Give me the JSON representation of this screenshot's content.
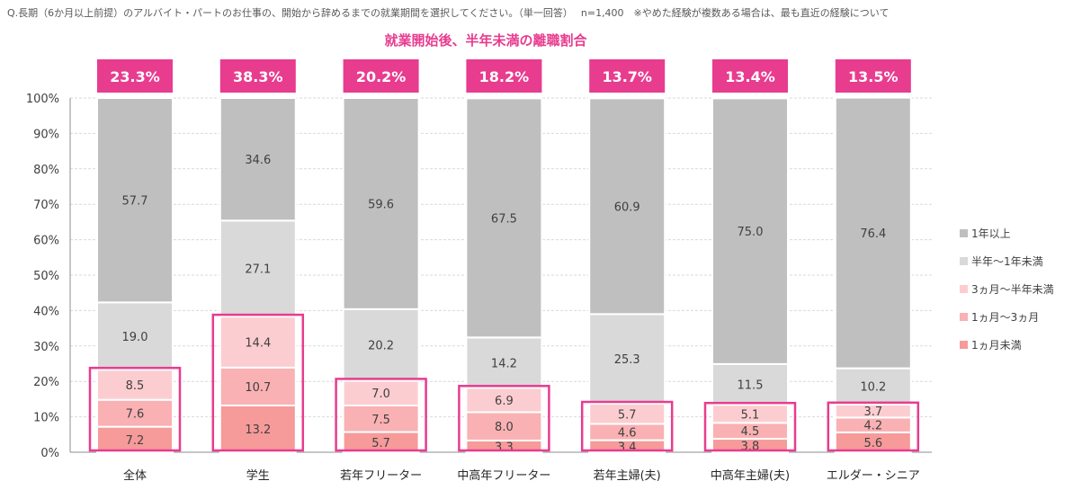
{
  "question": "Q.長期（6か月以上前提）のアルバイト・パートのお仕事の、開始から辞めるまでの就業期間を選択してください。（単一回答）　 n=1,400　※やめた経験が複数ある場合は、最も直近の経験について",
  "chart_data": {
    "type": "bar",
    "stacked": true,
    "title": "就業開始後、半年未満の離職割合",
    "categories": [
      "全体",
      "学生",
      "若年フリーター",
      "中高年フリーター",
      "若年主婦(夫)",
      "中高年主婦(夫)",
      "エルダー・シニア"
    ],
    "ylim": [
      0,
      100
    ],
    "ytick_labels": [
      "0%",
      "10%",
      "20%",
      "30%",
      "40%",
      "50%",
      "60%",
      "70%",
      "80%",
      "90%",
      "100%"
    ],
    "grid": true,
    "legend_position": "right",
    "series": [
      {
        "name": "1ヵ月未満",
        "color": "#f79a9a",
        "values": [
          7.2,
          13.2,
          5.7,
          3.3,
          3.4,
          3.8,
          5.6
        ]
      },
      {
        "name": "1ヵ月〜3ヵ月",
        "color": "#f9b1b3",
        "values": [
          7.6,
          10.7,
          7.5,
          8.0,
          4.6,
          4.5,
          4.2
        ]
      },
      {
        "name": "3ヵ月〜半年未満",
        "color": "#fccdd0",
        "values": [
          8.5,
          14.4,
          7.0,
          6.9,
          5.7,
          5.1,
          3.7
        ]
      },
      {
        "name": "半年〜1年未満",
        "color": "#d9d9d9",
        "values": [
          19.0,
          27.1,
          20.2,
          14.2,
          25.3,
          11.5,
          10.2
        ]
      },
      {
        "name": "1年以上",
        "color": "#bfbfbf",
        "values": [
          57.7,
          34.6,
          59.6,
          67.5,
          60.9,
          75.0,
          76.4
        ]
      }
    ],
    "highlight_labels": [
      "23.3%",
      "38.3%",
      "20.2%",
      "18.2%",
      "13.7%",
      "13.4%",
      "13.5%"
    ],
    "colors": {
      "accent": "#e83c8f",
      "title": "#e83c8f",
      "grid": "#d9d9d9",
      "axis_text": "#404040"
    }
  }
}
